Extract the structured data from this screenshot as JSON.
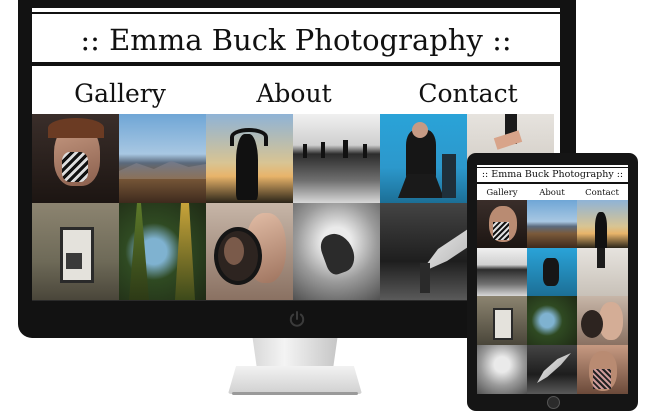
{
  "site": {
    "title": ":: Emma Buck Photography ::"
  },
  "nav": {
    "items": [
      {
        "label": "Gallery"
      },
      {
        "label": "About"
      },
      {
        "label": "Contact"
      }
    ]
  },
  "gallery": {
    "photos": [
      "portrait-woman-painted-face",
      "mountain-landscape",
      "silhouette-sunset",
      "rooftop-silhouettes",
      "man-on-chair-blue",
      "legs-in-heels",
      "abandoned-door",
      "pond-trees",
      "woman-with-mirror",
      "bw-underwater-figure",
      "bw-flowing-fabric"
    ]
  },
  "icons": {
    "monitor_power": "power-icon",
    "tablet_home": "home-button-icon"
  },
  "colors": {
    "bezel": "#121212",
    "text": "#111111",
    "background": "#ffffff"
  }
}
